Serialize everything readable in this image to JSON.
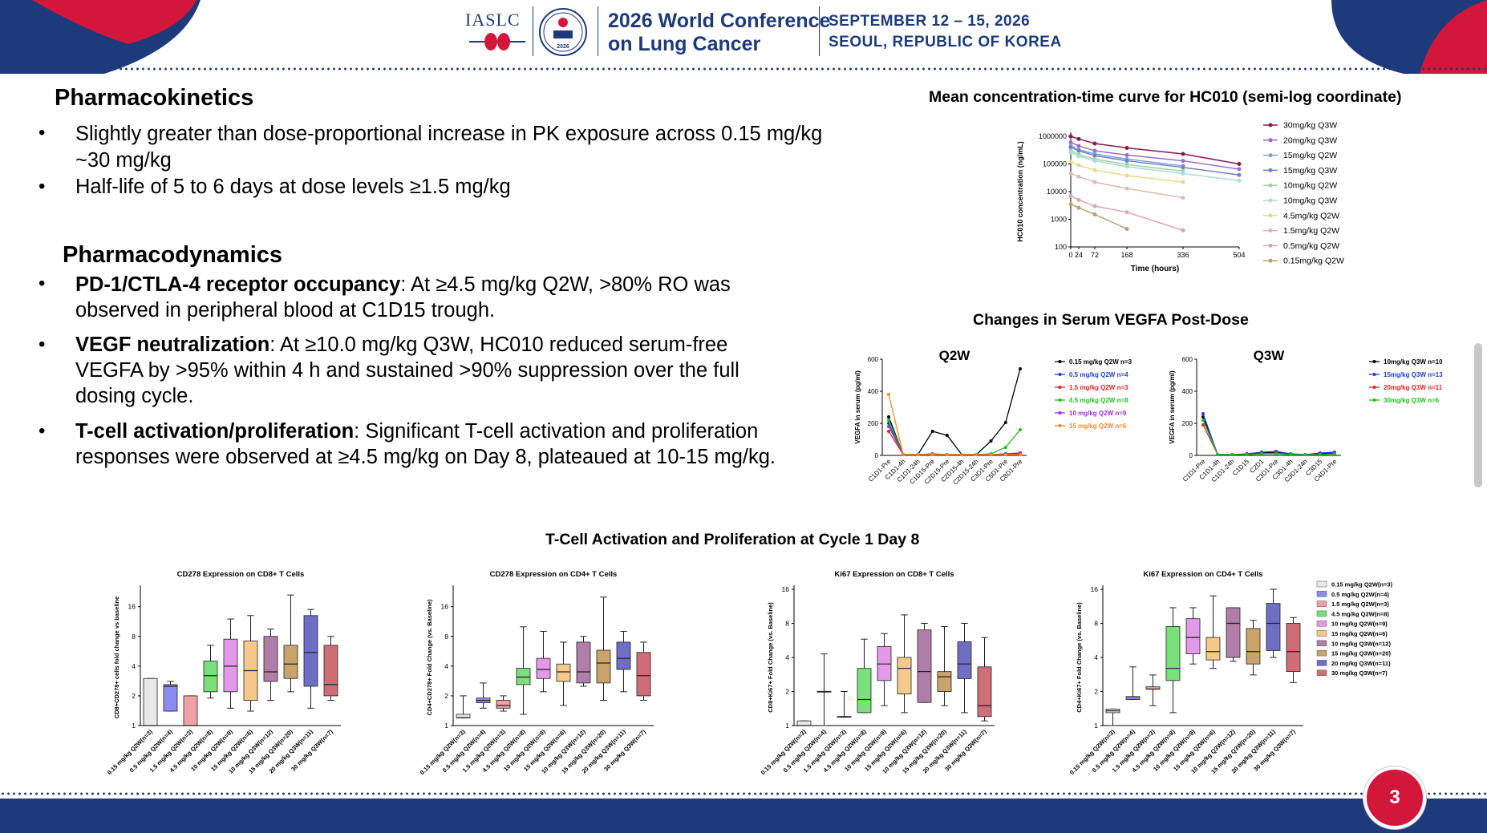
{
  "header": {
    "org": "IASLC",
    "badge_year": "2026",
    "conference_line1": "2026 World Conference",
    "conference_line2": "on Lung Cancer",
    "date_line1": "SEPTEMBER 12 – 15, 2026",
    "date_line2": "SEOUL, REPUBLIC OF KOREA"
  },
  "pk": {
    "title": "Pharmacokinetics",
    "bullets": [
      "Slightly greater than dose-proportional increase in PK exposure across 0.15 mg/kg",
      "~30 mg/kg",
      "Half-life of 5 to 6 days at dose levels ≥1.5 mg/kg"
    ]
  },
  "pd": {
    "title": "Pharmacodynamics",
    "bullets": [
      {
        "bold": "PD-1/CTLA-4 receptor occupancy",
        "lines": [
          ": At ≥4.5 mg/kg Q2W, >80% RO was",
          "observed in peripheral blood at C1D15 trough."
        ]
      },
      {
        "bold": "VEGF neutralization",
        "lines": [
          ": At ≥10.0 mg/kg Q3W, HC010 reduced serum-free",
          "VEGFA by >95% within 4 h and sustained >90% suppression over the full",
          "dosing cycle."
        ]
      },
      {
        "bold": "T-cell activation/proliferation",
        "lines": [
          ": Significant T-cell activation and proliferation",
          "responses were observed at ≥4.5 mg/kg on Day 8, plateaued at 10-15 mg/kg."
        ]
      }
    ]
  },
  "section_titles": {
    "pk_curve": "Mean concentration-time curve for HC010 (semi-log coordinate)",
    "vegfa": "Changes in Serum VEGFA Post-Dose",
    "tcell": "T-Cell Activation and Proliferation at Cycle 1 Day 8"
  },
  "page_number": "3",
  "chart_data": [
    {
      "id": "pk",
      "type": "line",
      "xlabel": "Time (hours)",
      "ylabel": "HC010 concentration (ng/mL)",
      "log_y": true,
      "xlim": [
        0,
        504
      ],
      "ylim": [
        100,
        1000000
      ],
      "x_ticks": [
        0,
        24,
        72,
        168,
        336,
        504
      ],
      "y_ticks": [
        {
          "v": 100,
          "label": "100"
        },
        {
          "v": 1000,
          "label": "1000"
        },
        {
          "v": 10000,
          "label": "10000"
        },
        {
          "v": 100000,
          "label": "100000"
        },
        {
          "v": 1000000,
          "label": "1000000"
        }
      ],
      "legend_position": "right",
      "series": [
        {
          "name": "30mg/kg Q3W",
          "color": "#8b1a4a",
          "x": [
            0,
            24,
            72,
            168,
            336,
            504
          ],
          "y": [
            1000000,
            800000,
            550000,
            380000,
            230000,
            100000
          ]
        },
        {
          "name": "20mg/kg Q3W",
          "color": "#9b6ec7",
          "x": [
            0,
            24,
            72,
            168,
            336,
            504
          ],
          "y": [
            600000,
            450000,
            300000,
            210000,
            130000,
            65000
          ]
        },
        {
          "name": "15mg/kg Q2W",
          "color": "#7fa3d6",
          "x": [
            0,
            24,
            72,
            168,
            336
          ],
          "y": [
            450000,
            330000,
            230000,
            150000,
            85000
          ]
        },
        {
          "name": "15mg/kg Q3W",
          "color": "#6f7fc9",
          "x": [
            0,
            24,
            72,
            168,
            336,
            504
          ],
          "y": [
            400000,
            300000,
            200000,
            130000,
            75000,
            40000
          ]
        },
        {
          "name": "10mg/kg Q2W",
          "color": "#9bd49b",
          "x": [
            0,
            24,
            72,
            168,
            336
          ],
          "y": [
            300000,
            220000,
            150000,
            95000,
            55000
          ]
        },
        {
          "name": "10mg/kg Q3W",
          "color": "#a8dcd6",
          "x": [
            0,
            24,
            72,
            168,
            336,
            504
          ],
          "y": [
            260000,
            190000,
            130000,
            80000,
            45000,
            25000
          ]
        },
        {
          "name": "4.5mg/kg Q2W",
          "color": "#e6d98a",
          "x": [
            0,
            24,
            72,
            168,
            336
          ],
          "y": [
            120000,
            90000,
            60000,
            38000,
            22000
          ]
        },
        {
          "name": "1.5mg/kg Q2W",
          "color": "#e0b8b0",
          "x": [
            0,
            24,
            72,
            168,
            336
          ],
          "y": [
            45000,
            35000,
            22000,
            13000,
            6000
          ]
        },
        {
          "name": "0.5mg/kg Q2W",
          "color": "#d9a5b0",
          "x": [
            0,
            24,
            72,
            168,
            336
          ],
          "y": [
            7000,
            5000,
            3000,
            1800,
            400
          ]
        },
        {
          "name": "0.15mg/kg Q2W",
          "color": "#b5a272",
          "x": [
            0,
            24,
            72,
            168
          ],
          "y": [
            3500,
            2600,
            1500,
            450
          ]
        }
      ]
    },
    {
      "id": "vegf_q2w",
      "type": "line",
      "title": "Q2W",
      "ylabel": "VEGFA in serum (pg/ml)",
      "ylim": [
        0,
        600
      ],
      "y_ticks": [
        0,
        200,
        400,
        600
      ],
      "categories": [
        "C1D1-Pre",
        "C1D1-4h",
        "C1D1-24h",
        "C1D15-Pre",
        "C2D15-Pre",
        "C2D15-4h",
        "C2D15-24h",
        "C3D1-Pre",
        "C5D1-Pre",
        "C8D1-Pre"
      ],
      "legend_position": "right",
      "series": [
        {
          "name": "0.15 mg/kg Q2W n=3",
          "color": "#000000",
          "values": [
            240,
            5,
            5,
            150,
            125,
            5,
            5,
            90,
            205,
            540
          ]
        },
        {
          "name": "0.5 mg/kg Q2W n=4",
          "color": "#1f3fd4",
          "values": [
            200,
            5,
            5,
            5,
            5,
            5,
            5,
            5,
            10,
            15
          ]
        },
        {
          "name": "1.5 mg/kg Q2W n=3",
          "color": "#e52222",
          "values": [
            150,
            5,
            5,
            10,
            5,
            5,
            5,
            5,
            5,
            10
          ]
        },
        {
          "name": "4.5 mg/kg Q2W n=8",
          "color": "#1fbf1f",
          "values": [
            220,
            5,
            5,
            5,
            5,
            5,
            5,
            10,
            50,
            160
          ]
        },
        {
          "name": "10 mg/kg Q2W n=9",
          "color": "#9a2fd4",
          "values": [
            180,
            5,
            5,
            5,
            5,
            5,
            5,
            5,
            5,
            5
          ]
        },
        {
          "name": "15 mg/kg Q2W n=6",
          "color": "#f28a1f",
          "values": [
            380,
            5,
            5,
            5,
            5,
            5,
            5,
            5,
            5,
            5
          ]
        }
      ]
    },
    {
      "id": "vegf_q3w",
      "type": "line",
      "title": "Q3W",
      "ylabel": "VEGFA in serum (pg/ml)",
      "ylim": [
        0,
        600
      ],
      "y_ticks": [
        0,
        200,
        400,
        600
      ],
      "categories": [
        "C1D1-Pre",
        "C1D1-4h",
        "C1D1-24h",
        "C1D15",
        "C2D1",
        "C3D1-Pre",
        "C3D1-4h",
        "C3D1-24h",
        "C3D15",
        "C4D1-Pre"
      ],
      "legend_position": "right",
      "series": [
        {
          "name": "10mg/kg Q3W n=10",
          "color": "#000000",
          "values": [
            240,
            5,
            5,
            5,
            15,
            20,
            5,
            5,
            10,
            15
          ]
        },
        {
          "name": "15mg/kg Q3W n=13",
          "color": "#1f3fd4",
          "values": [
            260,
            5,
            5,
            10,
            20,
            25,
            10,
            5,
            15,
            20
          ]
        },
        {
          "name": "20mg/kg Q3W n=11",
          "color": "#e52222",
          "values": [
            190,
            5,
            5,
            5,
            10,
            15,
            5,
            5,
            5,
            10
          ]
        },
        {
          "name": "30mg/kg Q3W n=6",
          "color": "#1fbf1f",
          "values": [
            220,
            5,
            5,
            5,
            10,
            10,
            5,
            5,
            5,
            10
          ]
        }
      ]
    },
    {
      "id": "cd278_cd8",
      "type": "box",
      "title": "CD278 Expression on CD8+ T Cells",
      "ylabel": "CD8+CD278+ cells fold change vs baseline",
      "log_y": true,
      "ylim": [
        1,
        24
      ],
      "y_ticks": [
        1,
        2,
        4,
        8,
        16
      ],
      "categories": [
        "0.15 mg/kg Q2W(n=3)",
        "0.5 mg/kg Q2W(n=4)",
        "1.5 mg/kg Q2W(n=3)",
        "4.5 mg/kg Q2W(n=8)",
        "10 mg/kg Q2W(n=9)",
        "15 mg/kg Q2W(n=6)",
        "10 mg/kg Q3W(n=12)",
        "15 mg/kg Q3W(n=20)",
        "20 mg/kg Q3W(n=11)",
        "30 mg/kg Q3W(n=7)"
      ],
      "boxes": [
        {
          "min": 1,
          "q1": 1,
          "median": 1,
          "q3": 3,
          "max": 3
        },
        {
          "min": 1.4,
          "q1": 1.4,
          "median": 2.5,
          "q3": 2.6,
          "max": 2.8
        },
        {
          "min": 1,
          "q1": 1,
          "median": 1,
          "q3": 2,
          "max": 2
        },
        {
          "min": 1.9,
          "q1": 2.2,
          "median": 3.2,
          "q3": 4.5,
          "max": 6.5
        },
        {
          "min": 1.5,
          "q1": 2.2,
          "median": 4,
          "q3": 7.5,
          "max": 12
        },
        {
          "min": 1.4,
          "q1": 1.8,
          "median": 3.6,
          "q3": 7.2,
          "max": 13
        },
        {
          "min": 1.8,
          "q1": 2.8,
          "median": 3.5,
          "q3": 8,
          "max": 9.5
        },
        {
          "min": 2.2,
          "q1": 3,
          "median": 4.2,
          "q3": 6.5,
          "max": 21
        },
        {
          "min": 1.5,
          "q1": 2.5,
          "median": 5.5,
          "q3": 13,
          "max": 15
        },
        {
          "min": 1.8,
          "q1": 2,
          "median": 2.6,
          "q3": 6.5,
          "max": 8
        }
      ]
    },
    {
      "id": "cd278_cd4",
      "type": "box",
      "title": "CD278 Expression on CD4+ T Cells",
      "ylabel": "CD4+CD278+ Fold Change (vs. Baseline)",
      "log_y": true,
      "ylim": [
        1,
        24
      ],
      "y_ticks": [
        1,
        2,
        4,
        8,
        16
      ],
      "categories": [
        "0.15 mg/kg Q2W(n=3)",
        "0.5 mg/kg Q2W(n=4)",
        "1.5 mg/kg Q2W(n=3)",
        "4.5 mg/kg Q2W(n=8)",
        "10 mg/kg Q2W(n=9)",
        "15 mg/kg Q2W(n=6)",
        "10 mg/kg Q3W(n=12)",
        "15 mg/kg Q3W(n=20)",
        "20 mg/kg Q3W(n=11)",
        "30 mg/kg Q3W(n=7)"
      ],
      "boxes": [
        {
          "min": 1.2,
          "q1": 1.2,
          "median": 1.2,
          "q3": 1.3,
          "max": 2
        },
        {
          "min": 1.5,
          "q1": 1.7,
          "median": 1.8,
          "q3": 1.9,
          "max": 2.7
        },
        {
          "min": 1.4,
          "q1": 1.5,
          "median": 1.6,
          "q3": 1.8,
          "max": 2
        },
        {
          "min": 1.3,
          "q1": 2.6,
          "median": 3.1,
          "q3": 3.8,
          "max": 10
        },
        {
          "min": 2.2,
          "q1": 3,
          "median": 3.7,
          "q3": 4.8,
          "max": 9
        },
        {
          "min": 1.6,
          "q1": 2.8,
          "median": 3.5,
          "q3": 4.2,
          "max": 7
        },
        {
          "min": 2.5,
          "q1": 2.7,
          "median": 3.5,
          "q3": 7,
          "max": 8
        },
        {
          "min": 1.8,
          "q1": 2.7,
          "median": 4.3,
          "q3": 5.8,
          "max": 20
        },
        {
          "min": 2.2,
          "q1": 3.7,
          "median": 4.8,
          "q3": 7,
          "max": 9
        },
        {
          "min": 1.8,
          "q1": 2,
          "median": 3.2,
          "q3": 5.5,
          "max": 7
        }
      ]
    },
    {
      "id": "ki67_cd8",
      "type": "box",
      "title": "Ki67 Expression on CD8+ T Cells",
      "ylabel": "CD8+Ki67+ Fold Change (vs. Baseline)",
      "log_y": true,
      "ylim": [
        1,
        16
      ],
      "y_ticks": [
        1,
        2,
        4,
        8,
        16
      ],
      "categories": [
        "0.15 mg/kg Q2W(n=3)",
        "0.5 mg/kg Q2W(n=4)",
        "1.5 mg/kg Q2W(n=3)",
        "4.5 mg/kg Q2W(n=8)",
        "10 mg/kg Q2W(n=9)",
        "15 mg/kg Q2W(n=6)",
        "10 mg/kg Q3W(n=12)",
        "15 mg/kg Q3W(n=20)",
        "20 mg/kg Q3W(n=11)",
        "30 mg/kg Q3W(n=7)"
      ],
      "boxes": [
        {
          "min": 1,
          "q1": 1,
          "median": 1,
          "q3": 1.1,
          "max": 1.1
        },
        {
          "min": 1,
          "q1": 2,
          "median": 2,
          "q3": 2,
          "max": 4.3
        },
        {
          "min": 1.2,
          "q1": 1.2,
          "median": 1.2,
          "q3": 1.2,
          "max": 2
        },
        {
          "min": 1.3,
          "q1": 1.3,
          "median": 1.7,
          "q3": 3.2,
          "max": 5.8
        },
        {
          "min": 1.5,
          "q1": 2.5,
          "median": 3.5,
          "q3": 5,
          "max": 6.5
        },
        {
          "min": 1.3,
          "q1": 1.9,
          "median": 3.2,
          "q3": 4,
          "max": 9.5
        },
        {
          "min": 1.6,
          "q1": 1.6,
          "median": 3,
          "q3": 7,
          "max": 8
        },
        {
          "min": 1.5,
          "q1": 2,
          "median": 2.7,
          "q3": 3,
          "max": 7.5
        },
        {
          "min": 1.3,
          "q1": 2.6,
          "median": 3.5,
          "q3": 5.5,
          "max": 8
        },
        {
          "min": 1.1,
          "q1": 1.2,
          "median": 1.5,
          "q3": 3.3,
          "max": 6
        }
      ]
    },
    {
      "id": "ki67_cd4",
      "type": "box",
      "title": "Ki67 Expression on CD4+ T Cells",
      "ylabel": "CD4+Ki67+ Fold Change (vs. Baseline)",
      "log_y": true,
      "ylim": [
        1,
        16
      ],
      "y_ticks": [
        1,
        2,
        4,
        8,
        16
      ],
      "legend_position": "right",
      "categories": [
        "0.15 mg/kg Q2W(n=3)",
        "0.5 mg/kg Q2W(n=4)",
        "1.5 mg/kg Q2W(n=3)",
        "4.5 mg/kg Q2W(n=8)",
        "10 mg/kg Q2W(n=9)",
        "15 mg/kg Q2W(n=6)",
        "10 mg/kg Q3W(n=12)",
        "15 mg/kg Q3W(n=20)",
        "20 mg/kg Q3W(n=11)",
        "30 mg/kg Q3W(n=7)"
      ],
      "legend": [
        "0.15 mg/kg Q2W(n=3)",
        "0.5 mg/kg Q2W(n=4)",
        "1.5 mg/kg Q2W(n=3)",
        "4.5 mg/kg Q2W(n=8)",
        "10 mg/kg Q2W(n=9)",
        "15 mg/kg Q2W(n=6)",
        "10 mg/kg Q3W(n=12)",
        "15 mg/kg Q3W(n=20)",
        "20 mg/kg Q3W(n=11)",
        "30 mg/kg Q3W(n=7)"
      ],
      "boxes": [
        {
          "min": 1,
          "q1": 1.3,
          "median": 1.35,
          "q3": 1.4,
          "max": 1.4
        },
        {
          "min": 1.7,
          "q1": 1.7,
          "median": 1.8,
          "q3": 1.8,
          "max": 3.3
        },
        {
          "min": 1.5,
          "q1": 2.1,
          "median": 2.1,
          "q3": 2.2,
          "max": 2.8
        },
        {
          "min": 1.3,
          "q1": 2.5,
          "median": 3.2,
          "q3": 7.5,
          "max": 11
        },
        {
          "min": 3.5,
          "q1": 4.3,
          "median": 6,
          "q3": 8.8,
          "max": 11
        },
        {
          "min": 3.2,
          "q1": 3.8,
          "median": 4.5,
          "q3": 6,
          "max": 14
        },
        {
          "min": 3.7,
          "q1": 4,
          "median": 8,
          "q3": 11,
          "max": 11
        },
        {
          "min": 2.8,
          "q1": 3.5,
          "median": 4.5,
          "q3": 7.2,
          "max": 8.5
        },
        {
          "min": 4,
          "q1": 4.6,
          "median": 8,
          "q3": 12,
          "max": 16
        },
        {
          "min": 2.4,
          "q1": 3,
          "median": 4.5,
          "q3": 8,
          "max": 9
        }
      ]
    }
  ],
  "box_colors": [
    "#e8e8e8",
    "#8c8cf0",
    "#f0a0a8",
    "#79e07a",
    "#e29ae8",
    "#f5c98a",
    "#b07ea8",
    "#c8a36a",
    "#6e6ec4",
    "#cf6e76"
  ]
}
